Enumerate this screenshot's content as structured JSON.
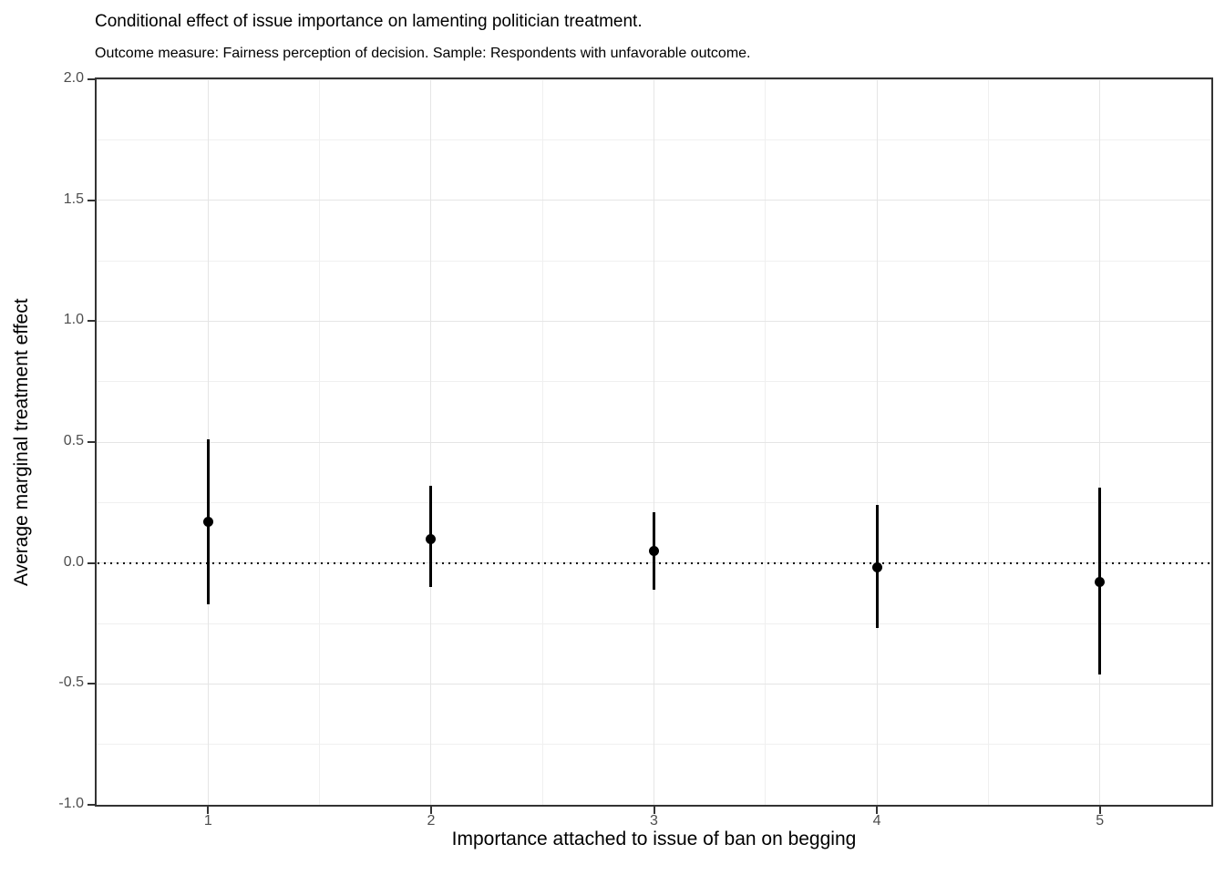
{
  "chart_data": {
    "type": "scatter",
    "variant": "pointrange-errorbar",
    "title": "Conditional effect of issue importance on lamenting politician treatment.",
    "subtitle": "Outcome measure: Fairness perception of decision. Sample: Respondents with unfavorable outcome.",
    "xlabel": "Importance attached to issue of ban on begging",
    "ylabel": "Average marginal treatment effect",
    "x": [
      1,
      2,
      3,
      4,
      5
    ],
    "x_tick_labels": [
      "1",
      "2",
      "3",
      "4",
      "5"
    ],
    "series": [
      {
        "name": "Average marginal treatment effect",
        "estimates": [
          0.17,
          0.1,
          0.05,
          -0.02,
          -0.08
        ],
        "ci_lower": [
          -0.17,
          -0.1,
          -0.11,
          -0.27,
          -0.46
        ],
        "ci_upper": [
          0.51,
          0.32,
          0.21,
          0.24,
          0.31
        ]
      }
    ],
    "xlim": [
      0.5,
      5.5
    ],
    "ylim": [
      -1.0,
      2.0
    ],
    "y_ticks": [
      2.0,
      1.5,
      1.0,
      0.5,
      0.0,
      -0.5,
      -1.0
    ],
    "y_tick_labels": [
      "2.0",
      "1.5",
      "1.0",
      "0.5",
      "0.0",
      "-0.5",
      "-1.0"
    ],
    "y_minor_gridlines": [
      1.75,
      1.25,
      0.75,
      0.25,
      -0.25,
      -0.75
    ],
    "x_minor_gridlines": [
      1.5,
      2.5,
      3.5,
      4.5
    ],
    "reference_line_y": 0,
    "reference_line_style": "dotted",
    "grid": true,
    "legend": "none",
    "colors": {
      "point": "#000000",
      "error_bar": "#000000",
      "reference_line": "#000000",
      "grid_major": "#e5e5e5",
      "grid_minor": "#f0f0f0",
      "panel_border": "#333333",
      "tick_text": "#4d4d4d",
      "title_text": "#000000",
      "background": "#ffffff"
    }
  }
}
